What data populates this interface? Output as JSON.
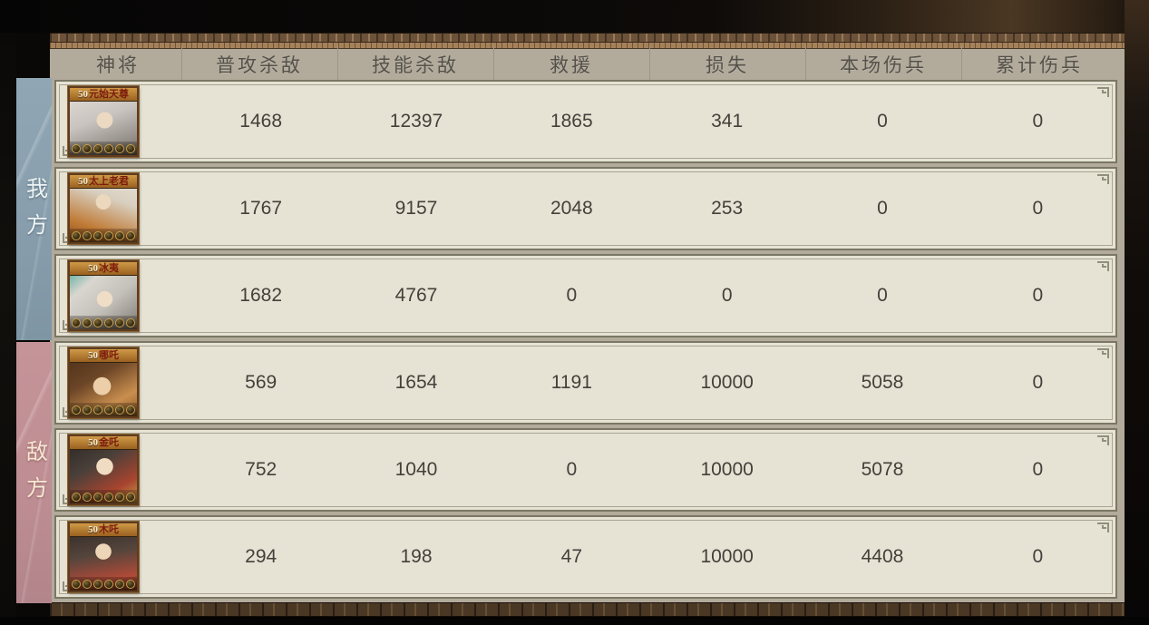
{
  "sidebar": {
    "ally_label": "我方",
    "enemy_label": "敌方"
  },
  "table": {
    "columns": [
      "神将",
      "普攻杀敌",
      "技能杀敌",
      "救援",
      "损失",
      "本场伤兵",
      "累计伤兵"
    ],
    "rows": [
      {
        "side": "ally",
        "level": "50",
        "name": "元始天尊",
        "star_count": 6,
        "values": [
          "1468",
          "12397",
          "1865",
          "341",
          "0",
          "0"
        ]
      },
      {
        "side": "ally",
        "level": "50",
        "name": "太上老君",
        "star_count": 6,
        "values": [
          "1767",
          "9157",
          "2048",
          "253",
          "0",
          "0"
        ]
      },
      {
        "side": "ally",
        "level": "50",
        "name": "冰夷",
        "star_count": 6,
        "values": [
          "1682",
          "4767",
          "0",
          "0",
          "0",
          "0"
        ]
      },
      {
        "side": "enemy",
        "level": "50",
        "name": "哪吒",
        "star_count": 6,
        "values": [
          "569",
          "1654",
          "1191",
          "10000",
          "5058",
          "0"
        ]
      },
      {
        "side": "enemy",
        "level": "50",
        "name": "金吒",
        "star_count": 6,
        "values": [
          "752",
          "1040",
          "0",
          "10000",
          "5078",
          "0"
        ]
      },
      {
        "side": "enemy",
        "level": "50",
        "name": "木吒",
        "star_count": 6,
        "values": [
          "294",
          "198",
          "47",
          "10000",
          "4408",
          "0"
        ]
      }
    ]
  },
  "colors": {
    "panel_bg": "#b2aa9b",
    "card_bg": "#e6e3d5",
    "ally_strip": "#8ba1af",
    "enemy_strip": "#c29399",
    "nameplate": "#b87f35",
    "hero_name_text": "#7c1b0c",
    "frieze_brown": "#6d523a"
  },
  "icons": {
    "corner_ornament": "corner-scroll-icon",
    "star": "star-coin-icon"
  }
}
